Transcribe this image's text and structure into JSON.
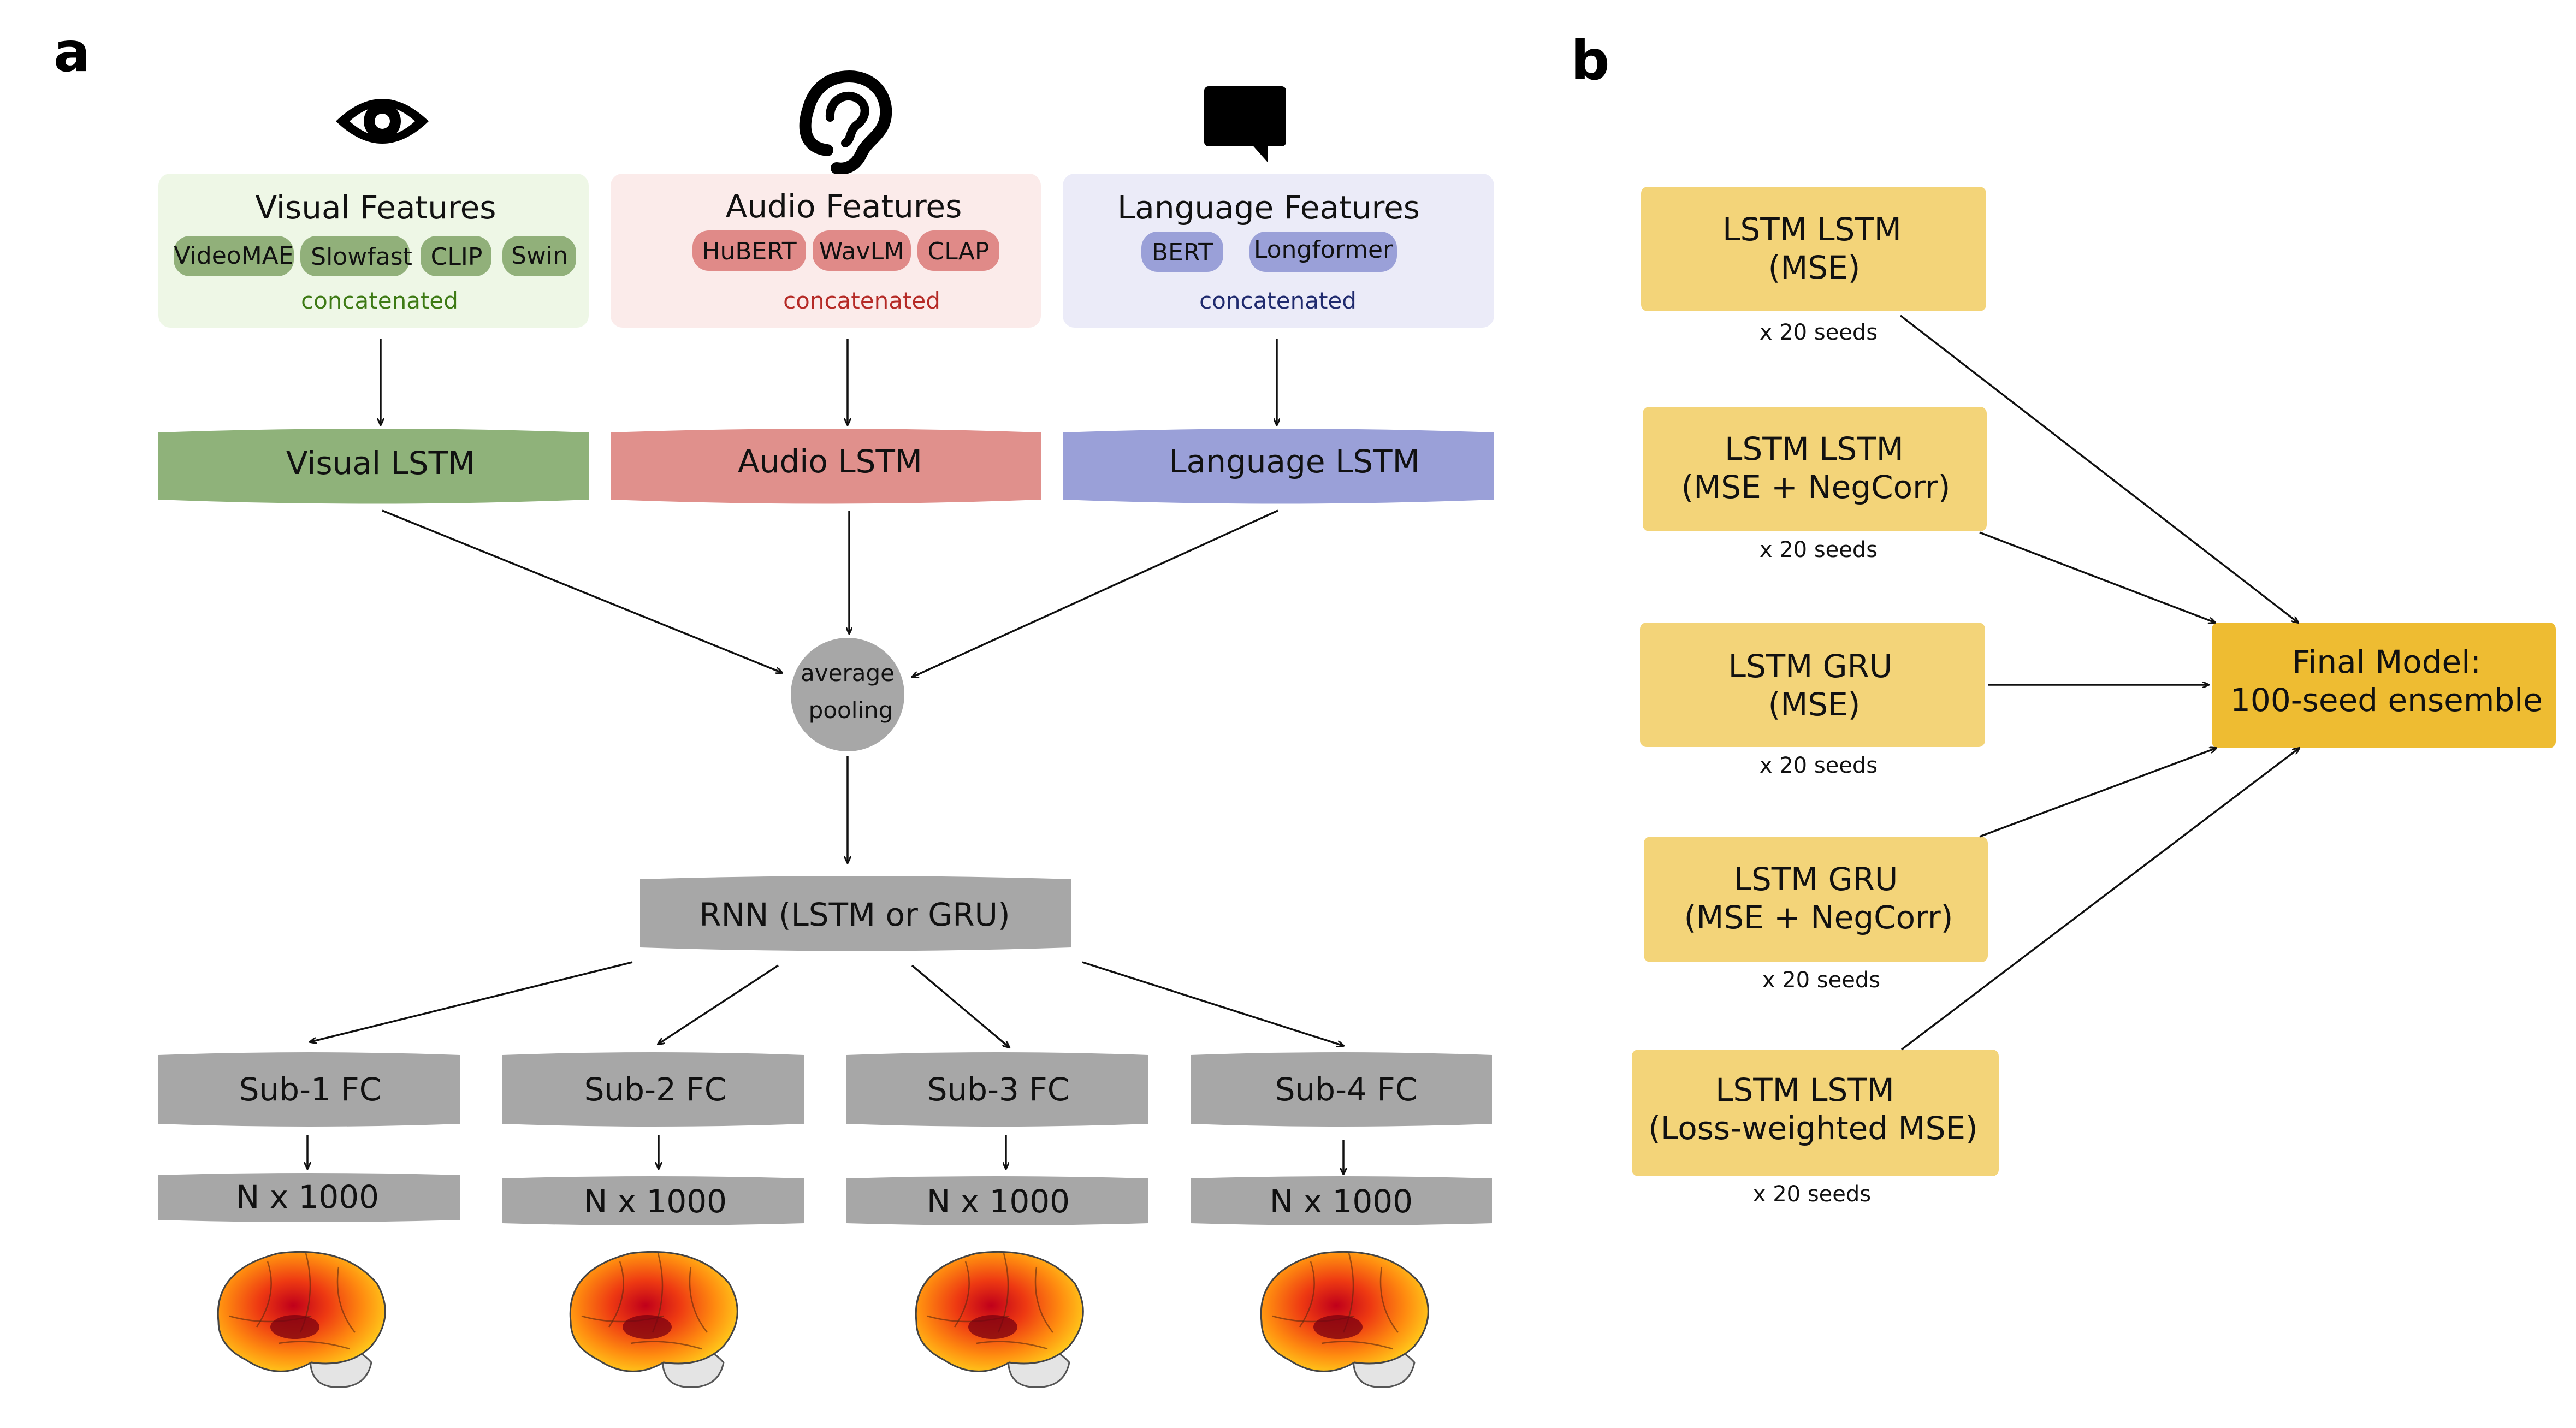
{
  "panels": {
    "a": "a",
    "b": "b"
  },
  "colors": {
    "visual_bg": "#eef7e6",
    "visual_chip": "#91b07a",
    "visual_lstm": "#8fb27a",
    "visual_sub": "#3d7a14",
    "audio_bg": "#fbebea",
    "audio_chip": "#e08a88",
    "audio_lstm": "#e0908c",
    "audio_sub": "#b52a26",
    "language_bg": "#ebebf8",
    "language_chip": "#9aa0d8",
    "language_lstm": "#9aa0d8",
    "language_sub": "#1f2a6e",
    "gray": "#a7a7a7",
    "model_box": "#f3d479",
    "final_box": "#eebc32"
  },
  "icons": [
    "eye-icon",
    "ear-icon",
    "speech-bubble-icon"
  ],
  "features": [
    {
      "title": "Visual Features",
      "chips": [
        "VideoMAE",
        "Slowfast",
        "CLIP",
        "Swin"
      ],
      "subtitle": "concatenated",
      "lstm": "Visual LSTM"
    },
    {
      "title": "Audio Features",
      "chips": [
        "HuBERT",
        "WavLM",
        "CLAP"
      ],
      "subtitle": "concatenated",
      "lstm": "Audio LSTM"
    },
    {
      "title": "Language Features",
      "chips": [
        "BERT",
        "Longformer"
      ],
      "subtitle": "concatenated",
      "lstm": "Language LSTM"
    }
  ],
  "pooling": {
    "line1": "average",
    "line2": "pooling"
  },
  "rnn": "RNN  (LSTM or GRU)",
  "subjects": [
    {
      "fc": "Sub-1 FC",
      "out": "N x 1000"
    },
    {
      "fc": "Sub-2 FC",
      "out": "N x 1000"
    },
    {
      "fc": "Sub-3 FC",
      "out": "N x 1000"
    },
    {
      "fc": "Sub-4 FC",
      "out": "N x 1000"
    }
  ],
  "models": [
    {
      "line1": "LSTM LSTM",
      "line2": "(MSE)",
      "seeds": "x 20 seeds"
    },
    {
      "line1": "LSTM LSTM",
      "line2": "(MSE + NegCorr)",
      "seeds": "x 20 seeds"
    },
    {
      "line1": "LSTM GRU",
      "line2": "(MSE)",
      "seeds": "x 20 seeds"
    },
    {
      "line1": "LSTM GRU",
      "line2": "(MSE + NegCorr)",
      "seeds": "x 20 seeds"
    },
    {
      "line1": "LSTM LSTM",
      "line2": "(Loss-weighted MSE)",
      "seeds": "x 20 seeds"
    }
  ],
  "final": {
    "line1": "Final Model:",
    "line2": "100-seed ensemble"
  }
}
